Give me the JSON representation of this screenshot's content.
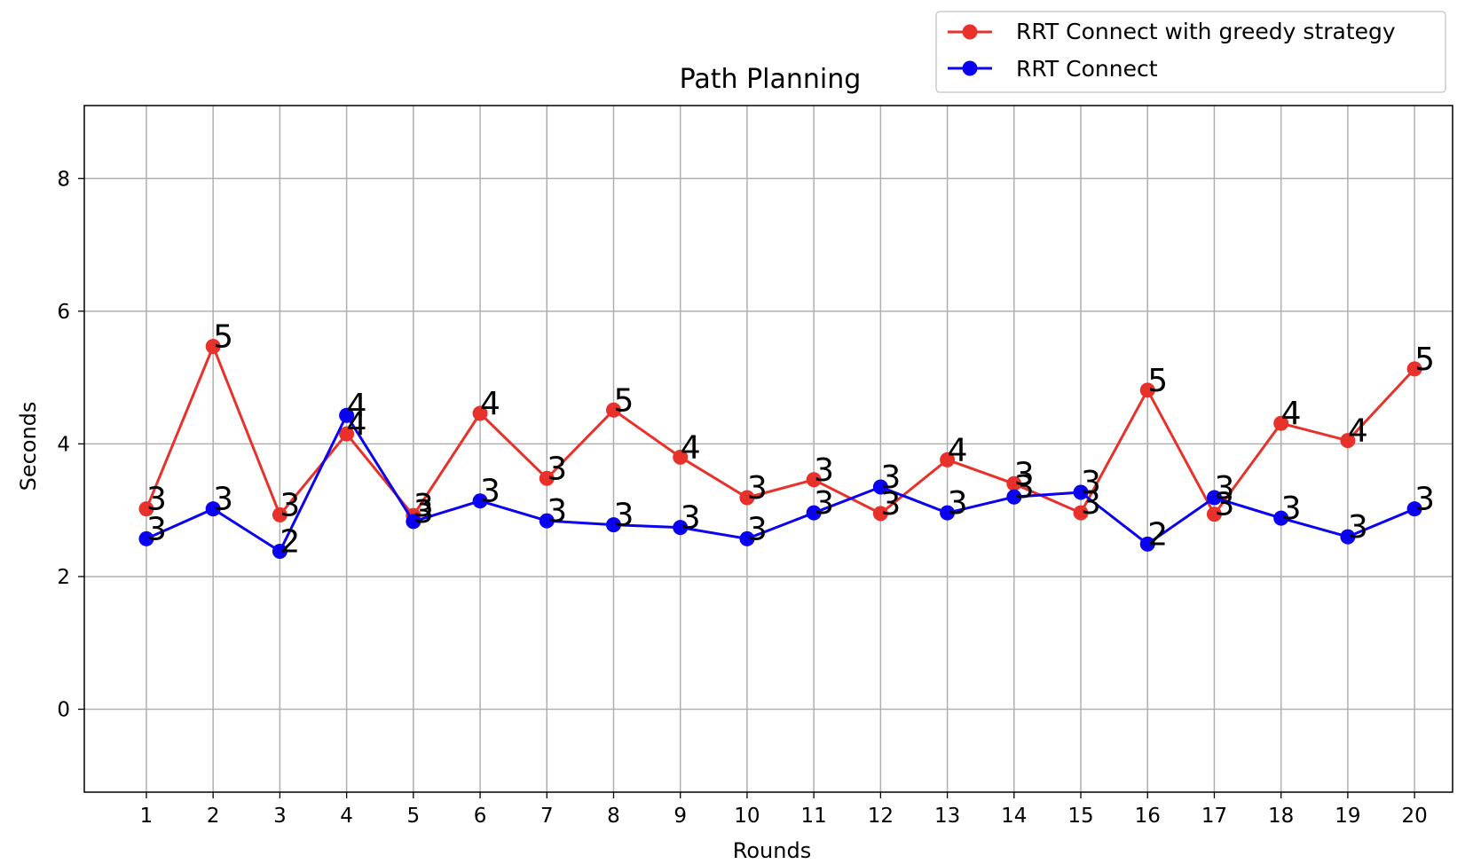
{
  "chart_data": {
    "type": "line",
    "title": "Path Planning",
    "xlabel": "Rounds",
    "ylabel": "Seconds",
    "x": [
      1,
      2,
      3,
      4,
      5,
      6,
      7,
      8,
      9,
      10,
      11,
      12,
      13,
      14,
      15,
      16,
      17,
      18,
      19,
      20
    ],
    "xticks": [
      "1",
      "2",
      "3",
      "4",
      "5",
      "6",
      "7",
      "8",
      "9",
      "10",
      "11",
      "12",
      "13",
      "14",
      "15",
      "16",
      "17",
      "18",
      "19",
      "20"
    ],
    "yticks": [
      0,
      2,
      4,
      6,
      8
    ],
    "ylim": [
      -1.25,
      9.1
    ],
    "xlim": [
      0.07,
      20.57
    ],
    "grid": true,
    "legend_position": "top-right (above plot)",
    "series": [
      {
        "name": "RRT Connect with greedy strategy",
        "color": "#e8312a",
        "marker": "circle",
        "values": [
          3.02,
          5.47,
          2.93,
          4.15,
          2.92,
          4.46,
          3.48,
          4.51,
          3.8,
          3.19,
          3.46,
          2.95,
          3.76,
          3.4,
          2.96,
          4.81,
          2.94,
          4.31,
          4.05,
          5.13
        ],
        "labels": [
          "3",
          "5",
          "3",
          "4",
          "3",
          "4",
          "3",
          "5",
          "4",
          "3",
          "3",
          "3",
          "4",
          "3",
          "3",
          "5",
          "3",
          "4",
          "4",
          "5"
        ]
      },
      {
        "name": "RRT Connect",
        "color": "#0a00f2",
        "marker": "circle",
        "values": [
          2.57,
          3.02,
          2.38,
          4.43,
          2.83,
          3.14,
          2.84,
          2.78,
          2.74,
          2.57,
          2.96,
          3.35,
          2.96,
          3.2,
          3.27,
          2.49,
          3.19,
          2.88,
          2.6,
          3.02
        ],
        "labels": [
          "3",
          "3",
          "2",
          "4",
          "3",
          "3",
          "3",
          "3",
          "3",
          "3",
          "3",
          "3",
          "3",
          "3",
          "3",
          "2",
          "3",
          "3",
          "3",
          "3"
        ]
      }
    ]
  }
}
